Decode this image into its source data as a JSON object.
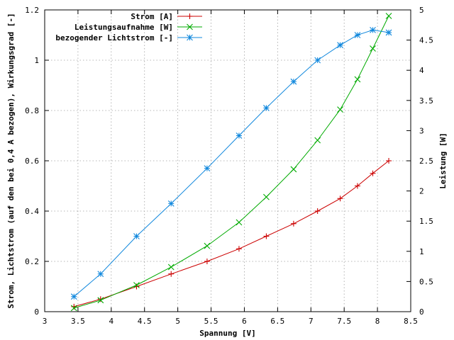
{
  "chart_data": {
    "type": "line",
    "xlabel": "Spannung [V]",
    "ylabel": "Strom, Lichtstrom (auf den bei 0,4 A bezogen), Wirkungsgrad [-]",
    "y2label": "Leistung [W]",
    "xlim": [
      3,
      8.5
    ],
    "ylim": [
      0,
      1.2
    ],
    "y2lim": [
      0,
      5
    ],
    "xticks": [
      "3",
      "3.5",
      "4",
      "4.5",
      "5",
      "5.5",
      "6",
      "6.5",
      "7",
      "7.5",
      "8",
      "8.5"
    ],
    "yticks": [
      "0",
      "0.2",
      "0.4",
      "0.6",
      "0.8",
      "1",
      "1.2"
    ],
    "y2ticks": [
      "0",
      "0.5",
      "1",
      "1.5",
      "2",
      "2.5",
      "3",
      "3.5",
      "4",
      "4.5",
      "5"
    ],
    "grid": true,
    "legend_position": "top-right",
    "series": [
      {
        "name": "Strom [A]",
        "color": "#cc0000",
        "marker": "plus",
        "axis": "left",
        "x": [
          3.44,
          3.84,
          4.38,
          4.9,
          5.44,
          5.92,
          6.33,
          6.74,
          7.1,
          7.44,
          7.7,
          7.93,
          8.17
        ],
        "y": [
          0.02,
          0.05,
          0.1,
          0.15,
          0.2,
          0.25,
          0.3,
          0.35,
          0.4,
          0.45,
          0.5,
          0.55,
          0.6
        ]
      },
      {
        "name": "Leistungsaufnahme [W]",
        "color": "#00aa00",
        "marker": "cross",
        "axis": "right",
        "x": [
          3.44,
          3.84,
          4.38,
          4.9,
          5.44,
          5.92,
          6.33,
          6.74,
          7.1,
          7.44,
          7.7,
          7.93,
          8.17
        ],
        "y": [
          0.06,
          0.19,
          0.44,
          0.74,
          1.09,
          1.48,
          1.9,
          2.36,
          2.84,
          3.35,
          3.85,
          4.36,
          4.9
        ]
      },
      {
        "name": "bezogender Lichtstrom [-]",
        "color": "#1188dd",
        "marker": "star",
        "axis": "left",
        "x": [
          3.44,
          3.84,
          4.38,
          4.9,
          5.44,
          5.92,
          6.33,
          6.74,
          7.1,
          7.44,
          7.7,
          7.93,
          8.17
        ],
        "y": [
          0.06,
          0.15,
          0.3,
          0.43,
          0.57,
          0.7,
          0.81,
          0.915,
          1.0,
          1.06,
          1.1,
          1.12,
          1.11
        ]
      }
    ]
  }
}
